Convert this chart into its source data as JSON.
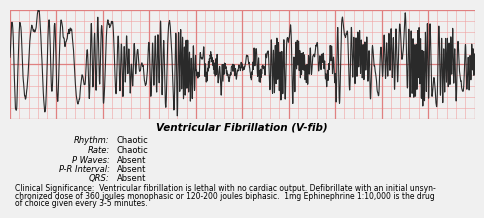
{
  "title": "Ventricular Fibrillation (V-fib)",
  "ecg_bg_color": "#f5c6c6",
  "ecg_grid_major_color": "#e08080",
  "ecg_grid_minor_color": "#f0a0a0",
  "ecg_line_color": "#2a2a2a",
  "border_color": "#333333",
  "left_labels": [
    "Rhythm:",
    "Rate:",
    "P Waves:",
    "P-R Interval:",
    "QRS:"
  ],
  "right_labels": [
    "Chaotic",
    "Chaotic",
    "Absent",
    "Absent",
    "Absent"
  ],
  "clinical_line1": "Clinical Significance:  Ventricular fibrillation is lethal with no cardiac output. Defibrillate with an initial unsyn-",
  "clinical_line2": "chronized dose of 360 joules monophasic or 120-200 joules biphasic.  1mg Ephinephrine 1:10,000 is the drug",
  "clinical_line3": "of choice given every 3-5 minutes.",
  "outer_bg": "#f0f0f0",
  "fig_width": 4.74,
  "fig_height": 1.99
}
